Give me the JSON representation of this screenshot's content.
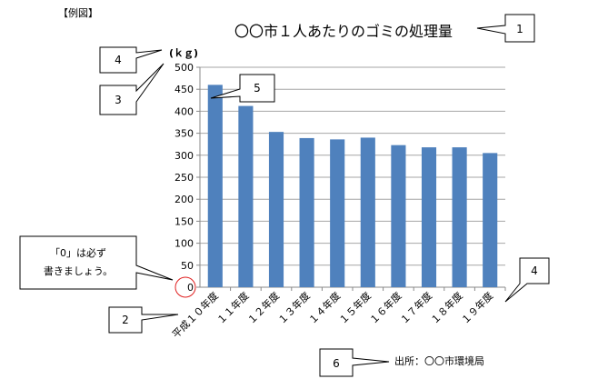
{
  "header_label": "【例図】",
  "source_text": "出所：〇〇市環境局",
  "unit_label": "(ｋｇ)",
  "note_text": [
    "「0」は必ず",
    "書きましょう。"
  ],
  "callouts": [
    "1",
    "2",
    "3",
    "4",
    "4",
    "5",
    "6"
  ],
  "chart_data": {
    "type": "bar",
    "title": "〇〇市１人あたりのゴミの処理量",
    "xlabel": "",
    "ylabel": "(ｋｇ)",
    "ylim": [
      0,
      500
    ],
    "yticks": [
      0,
      50,
      100,
      150,
      200,
      250,
      300,
      350,
      400,
      450,
      500
    ],
    "categories": [
      "平成１０年度",
      "１１年度",
      "１２年度",
      "１３年度",
      "１４年度",
      "１５年度",
      "１６年度",
      "１７年度",
      "１８年度",
      "１９年度"
    ],
    "values": [
      460,
      412,
      353,
      339,
      336,
      340,
      323,
      318,
      318,
      305
    ],
    "bar_color": "#4f81bd",
    "grid": true
  }
}
